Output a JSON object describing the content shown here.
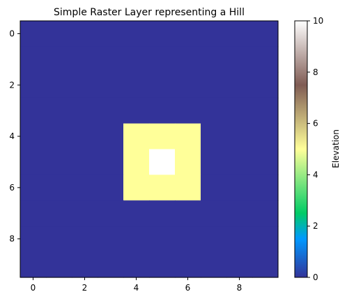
{
  "chart_data": {
    "type": "heatmap",
    "title": "Simple Raster Layer representing a Hill",
    "xlabel": "",
    "ylabel": "",
    "xlim": [
      -0.5,
      9.5
    ],
    "ylim": [
      9.5,
      -0.5
    ],
    "x_ticks": [
      0,
      2,
      4,
      6,
      8
    ],
    "y_ticks": [
      0,
      2,
      4,
      6,
      8
    ],
    "colormap": "terrain",
    "colorbar": {
      "label": "Elevation",
      "range": [
        0,
        10
      ],
      "ticks": [
        0,
        2,
        4,
        6,
        8,
        10
      ]
    },
    "grid": [
      [
        0,
        0,
        0,
        0,
        0,
        0,
        0,
        0,
        0,
        0
      ],
      [
        0,
        0,
        0,
        0,
        0,
        0,
        0,
        0,
        0,
        0
      ],
      [
        0,
        0,
        0,
        0,
        0,
        0,
        0,
        0,
        0,
        0
      ],
      [
        0,
        0,
        0,
        0,
        0,
        0,
        0,
        0,
        0,
        0
      ],
      [
        0,
        0,
        0,
        0,
        5,
        5,
        5,
        0,
        0,
        0
      ],
      [
        0,
        0,
        0,
        0,
        5,
        10,
        5,
        0,
        0,
        0
      ],
      [
        0,
        0,
        0,
        0,
        5,
        5,
        5,
        0,
        0,
        0
      ],
      [
        0,
        0,
        0,
        0,
        0,
        0,
        0,
        0,
        0,
        0
      ],
      [
        0,
        0,
        0,
        0,
        0,
        0,
        0,
        0,
        0,
        0
      ],
      [
        0,
        0,
        0,
        0,
        0,
        0,
        0,
        0,
        0,
        0
      ]
    ],
    "grid_lines": false
  }
}
